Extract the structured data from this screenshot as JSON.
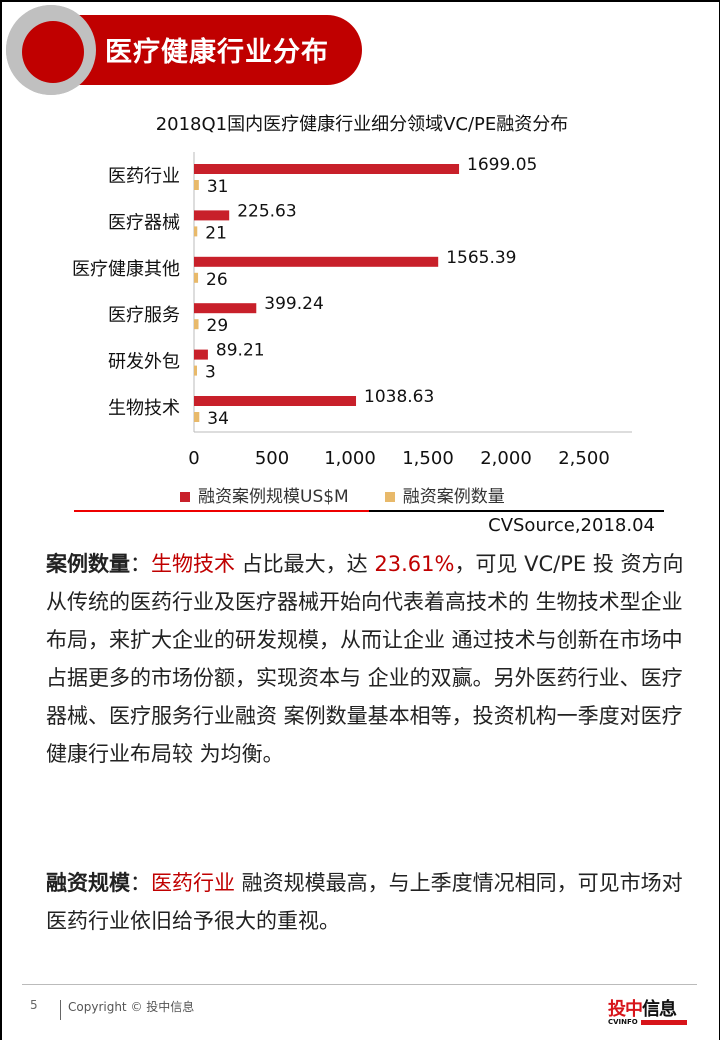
{
  "header": {
    "title": "医疗健康行业分布"
  },
  "chart_data": {
    "type": "bar",
    "orientation": "horizontal",
    "title": "2018Q1国内医疗健康行业细分领域VC/PE融资分布",
    "categories": [
      "医药行业",
      "医疗器械",
      "医疗健康其他",
      "医疗服务",
      "研发外包",
      "生物技术"
    ],
    "series": [
      {
        "name": "融资案例规模US$M",
        "color": "#c8202a",
        "values": [
          1699.05,
          225.63,
          1565.39,
          399.24,
          89.21,
          1038.63
        ],
        "labels": [
          "1699.05",
          "225.63",
          "1565.39",
          "399.24",
          "89.21",
          "1038.63"
        ]
      },
      {
        "name": "融资案例数量",
        "color": "#e8b96a",
        "values": [
          31,
          21,
          26,
          29,
          3,
          34
        ],
        "labels": [
          "31",
          "21",
          "26",
          "29",
          "3",
          "34"
        ]
      }
    ],
    "xlim": [
      0,
      2800
    ],
    "xticks": [
      "0",
      "500",
      "1,000",
      "1,500",
      "2,000",
      "2,500"
    ],
    "xtick_values": [
      0,
      500,
      1000,
      1500,
      2000,
      2500
    ],
    "grid": false,
    "legend": "bottom"
  },
  "source": "CVSource,2018.04",
  "para1": {
    "label": "案例数量",
    "colon": "：",
    "hl1": "生物技术",
    "t1": " 占比最大，达 ",
    "hl2": "23.61%",
    "t2": "，可见 VC/PE 投 资方向从传统的医药行业及医疗器械开始向代表着高技术的 生物技术型企业布局，来扩大企业的研发规模，从而让企业 通过技术与创新在市场中占据更多的市场份额，实现资本与 企业的双赢。另外医药行业、医疗器械、医疗服务行业融资 案例数量基本相等，投资机构一季度对医疗健康行业布局较 为均衡。"
  },
  "para2": {
    "label": "融资规模",
    "colon": "：",
    "hl1": "医药行业",
    "t1": " 融资规模最高，与上季度情况相同，可见市场对医药行业依旧给予很大的重视。"
  },
  "footer": {
    "page": "5",
    "copyright": "Copyright © 投中信息",
    "logo_red": "投中",
    "logo_black": "信息",
    "logo_sub": "CVINFO"
  }
}
